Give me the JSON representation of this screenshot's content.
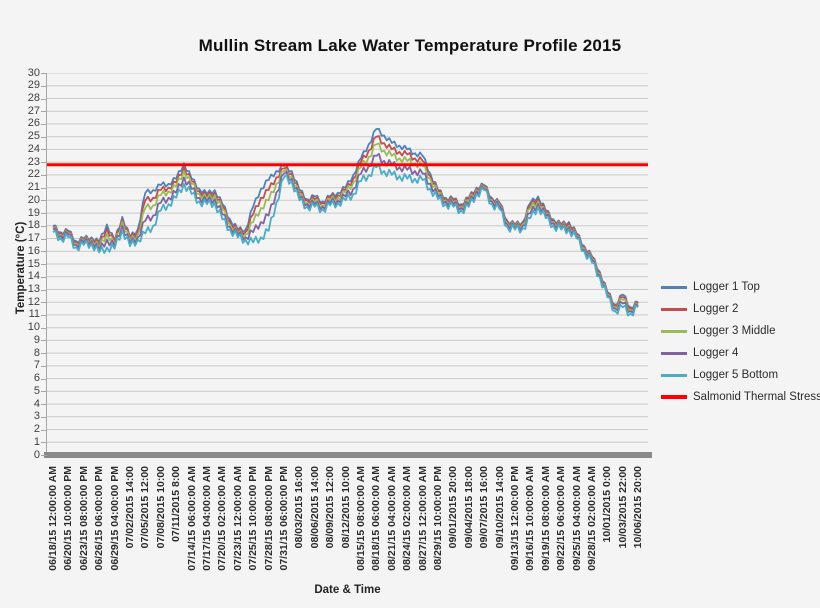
{
  "chart_data": {
    "type": "line",
    "title": "Mullin Stream Lake Water Temperature Profile 2015",
    "xlabel": "Date & Time",
    "ylabel": "Temperature (°C)",
    "ylim": [
      0,
      30
    ],
    "ytick_step": 1,
    "grid": "horizontal",
    "legend_position": "right",
    "x_tick_labels": [
      "06/18/15 12:00:00 AM",
      "06/20/15 10:00:00 PM",
      "06/23/15 08:00:00 PM",
      "06/26/15 06:00:00 PM",
      "06/29/15 04:00:00 PM",
      "07/02/2015 14:00",
      "07/05/2015 12:00",
      "07/08/2015 10:00",
      "07/11/2015 8:00",
      "07/14/15 06:00:00 AM",
      "07/17/15 04:00:00 AM",
      "07/20/15 02:00:00 AM",
      "07/23/15 12:00:00 AM",
      "07/25/15 10:00:00 PM",
      "07/28/15 08:00:00 PM",
      "07/31/15 06:00:00 PM",
      "08/03/2015 16:00",
      "08/06/2015 14:00",
      "08/09/2015 12:00",
      "08/12/2015 10:00",
      "08/15/15 08:00:00 AM",
      "08/18/15 06:00:00 AM",
      "08/21/15 04:00:00 AM",
      "08/24/15 02:00:00 AM",
      "08/27/15 12:00:00 AM",
      "08/29/15 10:00:00 PM",
      "09/01/2015 20:00",
      "09/04/2015 18:00",
      "09/07/2015 16:00",
      "09/10/2015 14:00",
      "09/13/15 12:00:00 PM",
      "09/16/15 10:00:00 AM",
      "09/19/15 08:00:00 AM",
      "09/22/15 06:00:00 AM",
      "09/25/15 04:00:00 AM",
      "09/28/15 02:00:00 AM",
      "10/01/2015 0:00",
      "10/03/2015 22:00",
      "10/06/2015 20:00"
    ],
    "points_per_series": 77,
    "hours_between_points": 35,
    "diurnal_noise_degC": 0.5,
    "series": [
      {
        "name": "Logger 1 Top",
        "color": "#4F81BD",
        "values": [
          18.0,
          17.5,
          17.6,
          16.8,
          17.0,
          17.1,
          16.7,
          18.1,
          16.8,
          18.7,
          17.1,
          17.7,
          20.6,
          20.8,
          21.2,
          21.3,
          21.7,
          22.9,
          21.7,
          20.9,
          20.5,
          20.8,
          19.7,
          18.5,
          17.7,
          17.7,
          19.5,
          20.9,
          21.6,
          22.3,
          22.7,
          22.3,
          20.8,
          20.1,
          20.3,
          19.9,
          20.3,
          20.6,
          21.0,
          22.0,
          23.3,
          24.4,
          25.6,
          25.1,
          24.5,
          24.3,
          24.0,
          23.7,
          23.5,
          22.1,
          20.8,
          20.2,
          20.1,
          19.7,
          20.2,
          21.0,
          21.2,
          20.2,
          19.8,
          18.4,
          18.1,
          18.3,
          19.8,
          20.3,
          19.2,
          18.5,
          18.1,
          18.3,
          17.4,
          16.4,
          15.6,
          14.4,
          12.8,
          11.8,
          12.6,
          11.6,
          12.0
        ]
      },
      {
        "name": "Logger 2",
        "color": "#C0504D",
        "values": [
          17.9,
          17.4,
          17.5,
          16.7,
          16.9,
          17.0,
          16.5,
          17.8,
          16.7,
          18.5,
          17.0,
          17.5,
          20.0,
          20.2,
          20.8,
          21.0,
          21.4,
          22.6,
          21.5,
          20.7,
          20.3,
          20.6,
          19.5,
          18.3,
          17.6,
          17.5,
          18.9,
          20.2,
          20.8,
          21.8,
          22.5,
          22.1,
          20.6,
          20.0,
          20.1,
          19.8,
          20.2,
          20.4,
          20.8,
          21.7,
          23.0,
          23.9,
          25.0,
          24.5,
          24.0,
          23.8,
          23.6,
          23.3,
          23.1,
          21.9,
          20.7,
          20.1,
          20.0,
          19.6,
          20.1,
          20.9,
          21.1,
          20.1,
          19.7,
          18.3,
          18.0,
          18.2,
          19.6,
          20.1,
          19.1,
          18.4,
          18.0,
          18.2,
          17.3,
          16.3,
          15.5,
          14.3,
          12.7,
          11.7,
          12.4,
          11.5,
          11.9
        ]
      },
      {
        "name": "Logger 3 Middle",
        "color": "#9BBB59",
        "values": [
          17.8,
          17.3,
          17.4,
          16.6,
          16.8,
          16.9,
          16.3,
          17.4,
          16.5,
          18.3,
          16.8,
          17.3,
          19.4,
          19.6,
          20.4,
          20.7,
          21.1,
          22.3,
          21.3,
          20.5,
          20.1,
          20.4,
          19.3,
          18.1,
          17.4,
          17.3,
          18.3,
          19.4,
          20.0,
          21.3,
          22.3,
          21.9,
          20.4,
          19.8,
          19.9,
          19.6,
          20.0,
          20.2,
          20.6,
          21.4,
          22.6,
          23.4,
          24.4,
          23.9,
          23.5,
          23.3,
          23.1,
          22.9,
          22.7,
          21.7,
          20.5,
          20.0,
          19.8,
          19.5,
          19.9,
          20.8,
          21.0,
          20.0,
          19.6,
          18.2,
          17.9,
          18.1,
          19.4,
          19.9,
          18.9,
          18.3,
          17.9,
          18.0,
          17.2,
          16.2,
          15.4,
          14.2,
          12.6,
          11.6,
          12.2,
          11.4,
          11.8
        ]
      },
      {
        "name": "Logger 4",
        "color": "#8064A2",
        "values": [
          17.7,
          17.2,
          17.3,
          16.5,
          16.7,
          16.8,
          16.1,
          16.9,
          16.4,
          18.0,
          16.6,
          17.1,
          18.4,
          18.8,
          19.8,
          20.2,
          20.6,
          21.8,
          20.9,
          20.2,
          19.9,
          20.1,
          18.9,
          17.9,
          17.3,
          17.1,
          17.5,
          18.3,
          18.8,
          20.6,
          22.1,
          21.7,
          20.2,
          19.7,
          19.7,
          19.5,
          19.8,
          20.0,
          20.3,
          20.9,
          22.1,
          22.7,
          23.5,
          23.1,
          22.8,
          22.6,
          22.4,
          22.3,
          22.1,
          21.3,
          20.3,
          19.9,
          19.7,
          19.4,
          19.7,
          20.7,
          20.9,
          19.9,
          19.5,
          18.1,
          17.8,
          18.0,
          19.0,
          19.7,
          18.8,
          18.2,
          17.8,
          17.9,
          17.1,
          16.1,
          15.3,
          14.1,
          12.5,
          11.5,
          11.9,
          11.3,
          11.7
        ]
      },
      {
        "name": "Logger 5 Bottom",
        "color": "#4BACC6",
        "values": [
          17.5,
          17.0,
          17.1,
          16.3,
          16.5,
          16.6,
          15.9,
          16.3,
          16.2,
          17.7,
          16.4,
          16.9,
          17.4,
          18.0,
          19.2,
          19.7,
          20.2,
          21.3,
          20.5,
          19.9,
          19.7,
          19.8,
          18.5,
          17.7,
          17.1,
          16.9,
          16.7,
          17.1,
          17.6,
          19.8,
          21.8,
          21.5,
          20.0,
          19.5,
          19.5,
          19.3,
          19.6,
          19.8,
          20.0,
          20.5,
          21.5,
          22.0,
          22.6,
          22.3,
          22.0,
          21.9,
          21.7,
          21.7,
          21.6,
          20.9,
          20.1,
          19.7,
          19.5,
          19.2,
          19.5,
          20.5,
          20.8,
          19.7,
          19.3,
          17.9,
          17.7,
          17.8,
          18.6,
          19.5,
          18.6,
          18.0,
          17.7,
          17.7,
          17.0,
          16.0,
          15.1,
          14.0,
          12.4,
          11.3,
          11.6,
          11.1,
          11.6
        ]
      }
    ],
    "reference_line": {
      "name": "Salmonid Thermal Stress",
      "color": "#FF0000",
      "value_degC": 22.8
    }
  },
  "colors": {
    "background": "#F4F4F4",
    "gridline": "#C9C9C9",
    "axis_bar": "#8A8A8A",
    "axis_line": "#A6A6A6",
    "tick_text": "#3F3F3F"
  }
}
